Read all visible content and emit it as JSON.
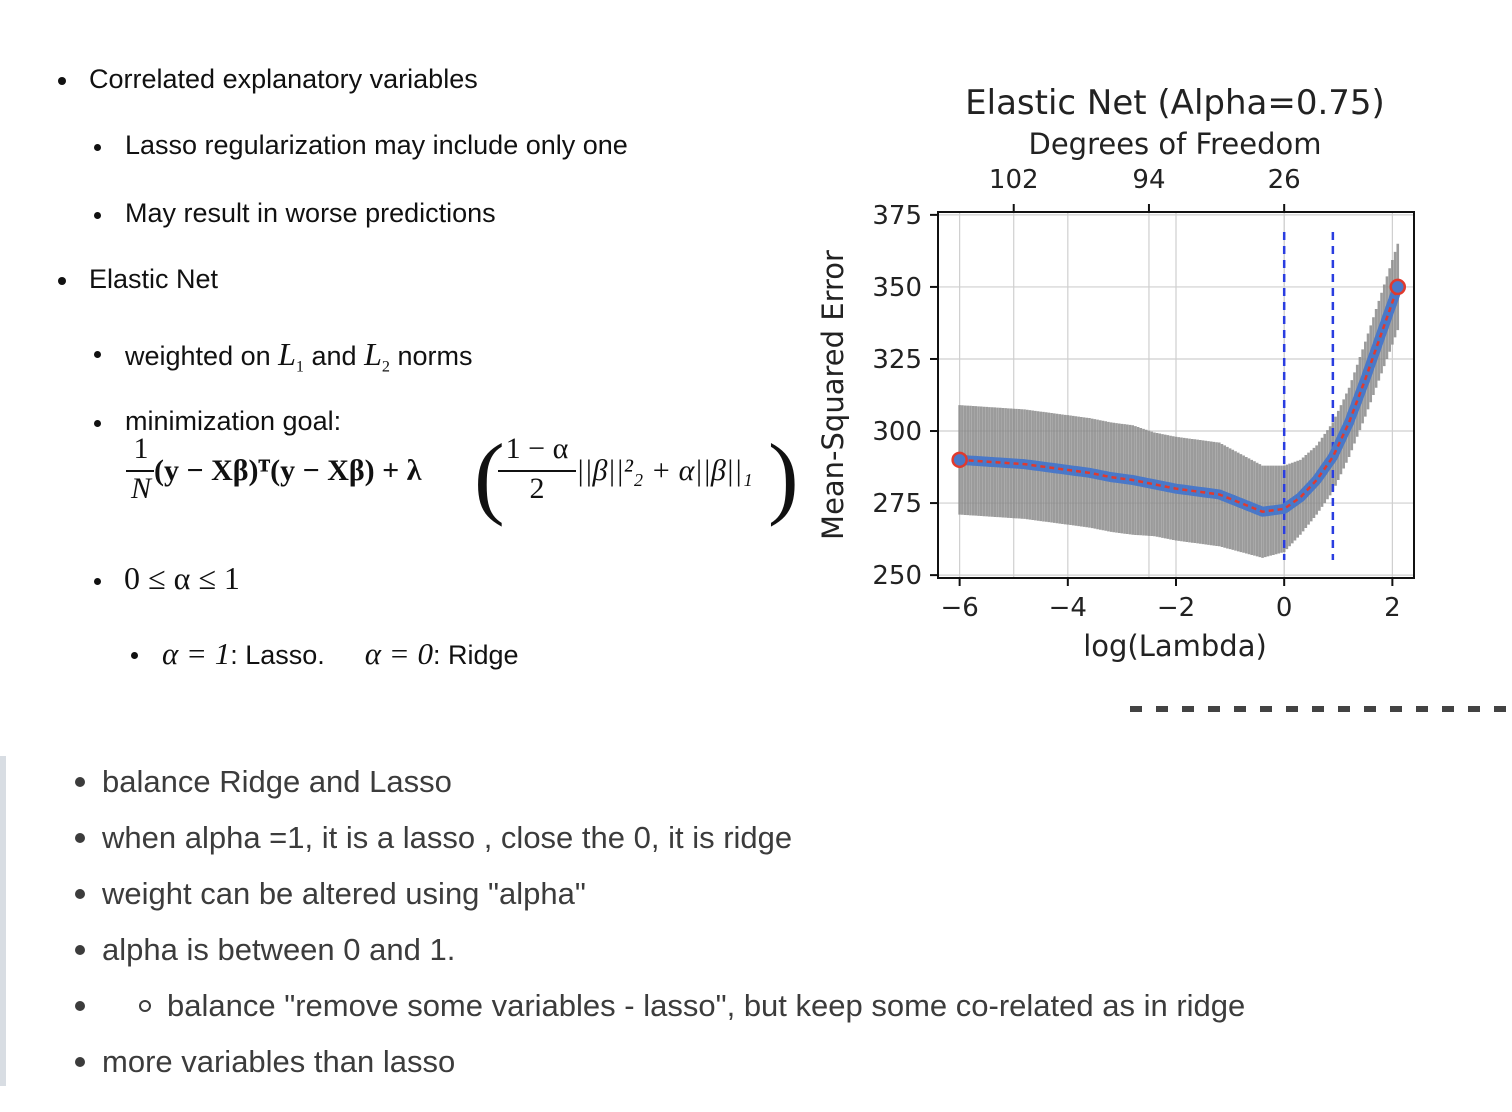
{
  "slide": {
    "bullets": {
      "b1": "Correlated explanatory variables",
      "b1a": "Lasso regularization may include only one",
      "b1b": "May result in worse predictions",
      "b2": "Elastic Net",
      "b2a_pre": "weighted on ",
      "b2a_l1": "L",
      "b2a_l1sub": "1",
      "b2a_mid": " and ",
      "b2a_l2": "L",
      "b2a_l2sub": "2",
      "b2a_post": " norms",
      "b2b": "minimization goal:",
      "b2c": "0 ≤ α ≤ 1",
      "b2d_a": "α = 1",
      "b2d_a_txt": ": Lasso.",
      "b2d_b": "α = 0",
      "b2d_b_txt": ": Ridge"
    },
    "formula": {
      "num1": "1",
      "den1": "N",
      "main": "(y − Xβ)ᵀ(y − Xβ) + λ",
      "num2": "1 − α",
      "den2": "2",
      "tail": "||β||²₂ + α||β||₁"
    }
  },
  "chart_data": {
    "type": "line",
    "title": "Elastic Net (Alpha=0.75)",
    "top_axis_label": "Degrees of Freedom",
    "top_ticks": [
      {
        "x": -5,
        "label": "102"
      },
      {
        "x": -2.5,
        "label": "94"
      },
      {
        "x": 0,
        "label": "26"
      }
    ],
    "xlabel": "log(Lambda)",
    "ylabel": "Mean-Squared Error",
    "xlim": [
      -6.4,
      2.4
    ],
    "ylim": [
      249,
      376
    ],
    "x_ticks": [
      -6,
      -4,
      -2,
      0,
      2
    ],
    "x_tick_labels": [
      "−6",
      "−4",
      "−2",
      "0",
      "2"
    ],
    "y_ticks": [
      250,
      275,
      300,
      325,
      350,
      375
    ],
    "grid": true,
    "vlines": [
      0,
      0.9
    ],
    "series": [
      {
        "x": [
          -6.0,
          -5.6,
          -5.2,
          -4.8,
          -4.4,
          -4.0,
          -3.6,
          -3.2,
          -2.8,
          -2.4,
          -2.0,
          -1.6,
          -1.2,
          -0.8,
          -0.4,
          0.0,
          0.3,
          0.6,
          0.9,
          1.2,
          1.5,
          1.8,
          2.1
        ],
        "values": [
          290,
          289.5,
          289,
          288.5,
          287.5,
          286.5,
          285.5,
          284,
          283,
          281.5,
          280,
          279,
          278,
          275,
          272,
          273,
          277,
          283,
          291,
          303,
          318,
          334,
          350
        ],
        "err": [
          19,
          19,
          19,
          19,
          19,
          19,
          19,
          19,
          19,
          18,
          18,
          18,
          18,
          17,
          16,
          15,
          13,
          12,
          12,
          12,
          13,
          14,
          15
        ]
      }
    ]
  },
  "notes": {
    "n1": "balance Ridge and Lasso",
    "n2": "when alpha =1, it is a lasso , close the 0, it is ridge",
    "n3": "weight can be altered using \"alpha\"",
    "n4": "alpha is between 0 and 1.",
    "n5": "balance \"remove some variables - lasso\", but keep some co-related as in ridge",
    "n6": "more variables than lasso"
  }
}
